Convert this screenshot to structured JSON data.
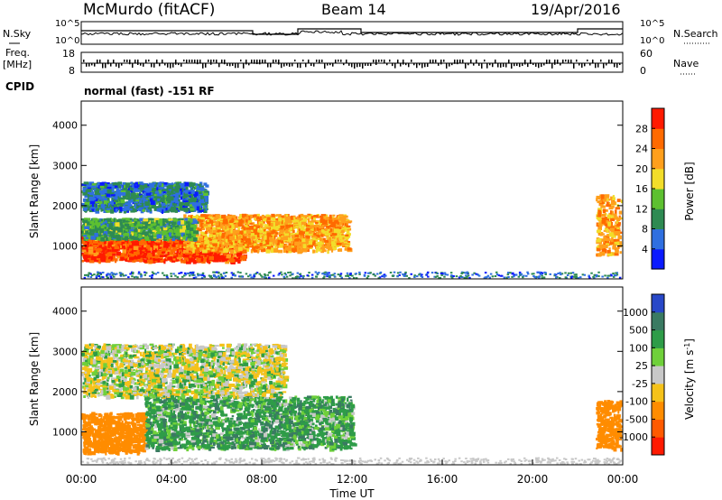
{
  "header": {
    "site": "McMurdo (fitACF)",
    "beam": "Beam 14",
    "date": "19/Apr/2016"
  },
  "status_panels": {
    "left_labels": {
      "nsky": "N.Sky",
      "freq": "Freq.",
      "freq_unit": "[MHz]",
      "cpid": "CPID"
    },
    "right_labels": {
      "nsearch": "N.Search",
      "nave": "Nave"
    },
    "nsky_ticks": [
      "10^5",
      "10^0"
    ],
    "freq_ticks": [
      "18",
      "8"
    ],
    "nave_ticks": [
      "60",
      "0"
    ],
    "cpid_text": "normal (fast) -151 RF"
  },
  "chart_data": [
    {
      "type": "heatmap",
      "name": "power",
      "ylabel": "Slant Range [km]",
      "xlabel": "",
      "yticks": [
        "1000",
        "2000",
        "3000",
        "4000"
      ],
      "ylim": [
        180,
        4600
      ],
      "xlim": [
        0,
        24
      ],
      "colorbar": {
        "label": "Power [dB]",
        "ticks": [
          "4",
          "8",
          "12",
          "16",
          "20",
          "24",
          "28"
        ],
        "range": [
          0,
          32
        ],
        "colors": [
          "#0a1aff",
          "#2f6fe0",
          "#2e8a52",
          "#5dc030",
          "#f2dd2a",
          "#ff9f1c",
          "#ff6a00",
          "#ff1a00"
        ]
      },
      "echo_regions": [
        {
          "t0": 0.0,
          "t1": 7.2,
          "r0": 650,
          "r1": 1250,
          "level": 28
        },
        {
          "t0": 4.5,
          "t1": 11.8,
          "r0": 900,
          "r1": 1800,
          "level": 22
        },
        {
          "t0": 0.0,
          "t1": 5.0,
          "r0": 1200,
          "r1": 1700,
          "level": 12
        },
        {
          "t0": 0.0,
          "t1": 5.5,
          "r0": 1900,
          "r1": 2600,
          "level": 8
        },
        {
          "t0": 22.8,
          "t1": 24.0,
          "r0": 800,
          "r1": 2300,
          "level": 22
        }
      ]
    },
    {
      "type": "heatmap",
      "name": "velocity",
      "ylabel": "Slant Range [km]",
      "xlabel": "Time UT",
      "yticks": [
        "1000",
        "2000",
        "3000",
        "4000"
      ],
      "xticks": [
        "00:00",
        "04:00",
        "08:00",
        "12:00",
        "16:00",
        "20:00",
        "00:00"
      ],
      "ylim": [
        180,
        4600
      ],
      "xlim": [
        0,
        24
      ],
      "colorbar": {
        "label": "Velocity [m s^-1]",
        "ticks": [
          "1000",
          "500",
          "100",
          "25",
          "-25",
          "-100",
          "-500",
          "-1000"
        ],
        "colors": [
          "#2848c8",
          "#3a7a62",
          "#2e9c48",
          "#6fd03a",
          "#c8c8c8",
          "#f5c21a",
          "#ff8c00",
          "#ff5a00",
          "#ff1a00"
        ]
      },
      "echo_regions": [
        {
          "t0": 0.0,
          "t1": 2.8,
          "r0": 500,
          "r1": 1500,
          "level": -200
        },
        {
          "t0": 2.8,
          "t1": 12.0,
          "r0": 600,
          "r1": 1900,
          "level": 100
        },
        {
          "t0": 0.0,
          "t1": 9.0,
          "r0": 1900,
          "r1": 3200,
          "level": 0
        },
        {
          "t0": 22.8,
          "t1": 24.0,
          "r0": 600,
          "r1": 1800,
          "level": -200
        }
      ]
    }
  ]
}
